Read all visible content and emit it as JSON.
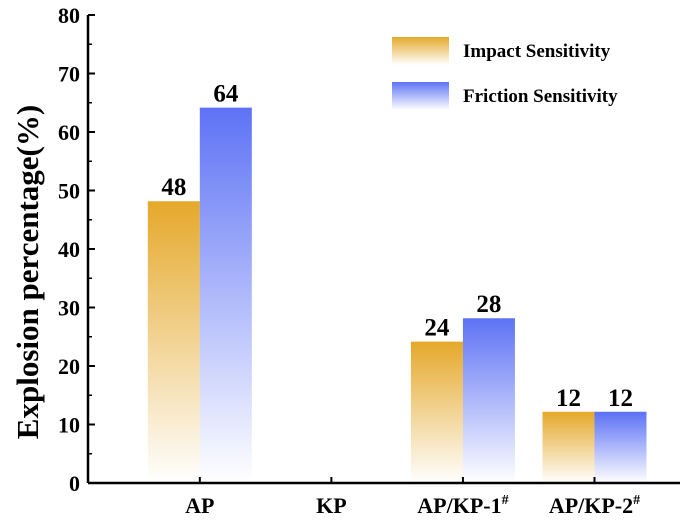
{
  "chart_data": {
    "type": "bar",
    "title": "",
    "xlabel": "",
    "ylabel": "Explosion percentage(%)",
    "ylim": [
      0,
      80
    ],
    "yticks": [
      0,
      10,
      20,
      30,
      40,
      50,
      60,
      70,
      80
    ],
    "grid": false,
    "legend_position": "top-right",
    "categories": [
      {
        "label": "AP",
        "sup": ""
      },
      {
        "label": "KP",
        "sup": ""
      },
      {
        "label": "AP/KP-1",
        "sup": "#"
      },
      {
        "label": "AP/KP-2",
        "sup": "#"
      }
    ],
    "series": [
      {
        "name": "Impact Sensitivity",
        "color": "#E5A92C",
        "values": [
          48,
          null,
          24,
          12
        ]
      },
      {
        "name": "Friction Sensitivity",
        "color": "#5E73F5",
        "values": [
          64,
          null,
          28,
          12
        ]
      }
    ]
  }
}
